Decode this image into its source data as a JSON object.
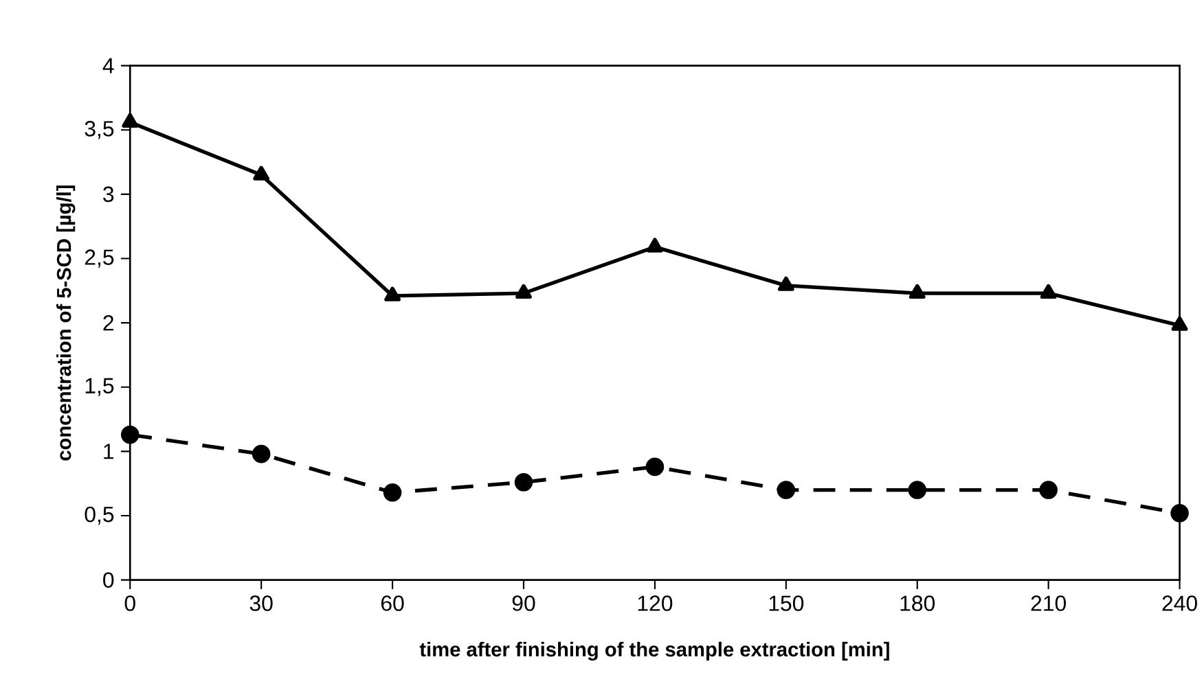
{
  "chart_data": {
    "type": "line",
    "xlabel": "time after finishing of the sample extraction [min]",
    "ylabel": "concentration of 5-SCD [µg/l]",
    "x": [
      0,
      30,
      60,
      90,
      120,
      150,
      180,
      210,
      240
    ],
    "series": [
      {
        "color": "#000000",
        "marker": "triangle",
        "line_style": "solid",
        "values": [
          3.56,
          3.15,
          2.21,
          2.23,
          2.59,
          2.29,
          2.23,
          2.23,
          1.98
        ]
      },
      {
        "color": "#000000",
        "marker": "circle",
        "line_style": "dashed",
        "values": [
          1.13,
          0.98,
          0.68,
          0.76,
          0.88,
          0.7,
          0.7,
          0.7,
          0.52
        ]
      }
    ],
    "xlim": [
      0,
      240
    ],
    "ylim": [
      0,
      4
    ],
    "xticks": [
      0,
      30,
      60,
      90,
      120,
      150,
      180,
      210,
      240
    ],
    "yticks": [
      0,
      {
        "value": 0.5,
        "label": "0,5"
      },
      1,
      {
        "value": 1.5,
        "label": "1,5"
      },
      2,
      {
        "value": 2.5,
        "label": "2,5"
      },
      3,
      {
        "value": 3.5,
        "label": "3,5"
      },
      4
    ],
    "grid": false,
    "legend": false
  }
}
